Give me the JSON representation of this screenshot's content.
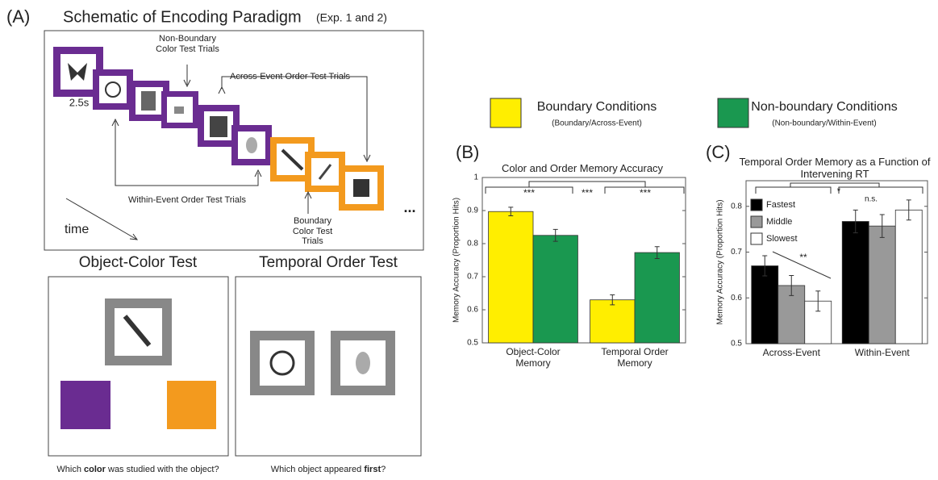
{
  "schematic": {
    "panel": "(A)",
    "title": "Schematic of Encoding Paradigm",
    "title_note": "(Exp. 1 and 2)",
    "duration": "2.5s",
    "non_boundary_color": "Non-Boundary Color Test Trials",
    "across_event_order": "Across-Event Order Test Trials",
    "within_event_order": "Within-Event Order Test Trials",
    "boundary_color": "Boundary Color Test Trials",
    "time": "time",
    "ellipsis": "..."
  },
  "color_test": {
    "title": "Object-Color Test",
    "question": [
      "Which ",
      "color",
      " was studied with the object?"
    ]
  },
  "order_test": {
    "title": "Temporal Order Test",
    "question": [
      "Which object appeared ",
      "first",
      "?"
    ]
  },
  "chart_data": [
    {
      "type": "bar",
      "panel": "(B)",
      "title": "Color and Order Memory Accuracy",
      "ylabel": "Memory Accuracy (Proportion Hits)",
      "categories": [
        "Object-Color Memory",
        "Temporal Order Memory"
      ],
      "series": [
        {
          "name": "Boundary Conditions",
          "note": "(Boundary/Across-Event)",
          "color": "#ffee00",
          "values": [
            0.897,
            0.63
          ],
          "errors": [
            0.013,
            0.015
          ]
        },
        {
          "name": "Non-boundary Conditions",
          "note": "(Non-boundary/Within-Event)",
          "color": "#1a9850",
          "values": [
            0.825,
            0.773
          ],
          "errors": [
            0.018,
            0.018
          ]
        }
      ],
      "annotations": [
        "***",
        "***",
        "***"
      ],
      "ylim": [
        0.5,
        1
      ],
      "yticks": [
        0.5,
        0.6,
        0.7,
        0.8,
        0.9,
        1
      ],
      "legend": "top"
    },
    {
      "type": "bar",
      "panel": "(C)",
      "title": "Temporal Order Memory as a Function of Intervening RT",
      "ylabel": "Memory Accuracy (Proportion Hits)",
      "categories": [
        "Across-Event",
        "Within-Event"
      ],
      "series": [
        {
          "name": "Fastest",
          "color": "#000000",
          "values": [
            0.67,
            0.767
          ],
          "errors": [
            0.022,
            0.025
          ]
        },
        {
          "name": "Middle",
          "color": "#999999",
          "values": [
            0.627,
            0.757
          ],
          "errors": [
            0.022,
            0.025
          ]
        },
        {
          "name": "Slowest",
          "color": "#ffffff",
          "values": [
            0.593,
            0.792
          ],
          "errors": [
            0.022,
            0.022
          ]
        }
      ],
      "annotations": [
        "*",
        "**",
        "n.s."
      ],
      "ylim": [
        0.5,
        0.856
      ],
      "yticks": [
        0.5,
        0.6,
        0.7,
        0.8
      ],
      "legend": "upper left"
    }
  ]
}
